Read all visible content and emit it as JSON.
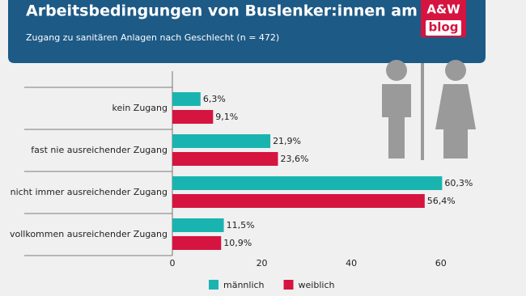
{
  "chart_data": {
    "type": "hbar",
    "title": "Arbeitsbedingungen von Buslenker:innen am Limit",
    "subtitle": "Zugang zu sanitären Anlagen nach Geschlecht (n = 472)",
    "logo_top": "A&W",
    "logo_bottom": "blog",
    "categories": [
      "kein Zugang",
      "fast nie ausreichender Zugang",
      "nicht immer ausreichender Zugang",
      "vollkommen ausreichender Zugang"
    ],
    "series": [
      {
        "name": "männlich",
        "color": "#1ab4b0",
        "values": [
          6.3,
          21.9,
          60.3,
          11.5
        ],
        "value_labels": [
          "6,3%",
          "21,9%",
          "60,3%",
          "11,5%"
        ]
      },
      {
        "name": "weiblich",
        "color": "#d5143f",
        "values": [
          9.1,
          23.6,
          56.4,
          10.9
        ],
        "value_labels": [
          "9,1%",
          "23,6%",
          "56,4%",
          "10,9%"
        ]
      }
    ],
    "xlim": [
      0,
      70
    ],
    "xticks": [
      0,
      20,
      40,
      60
    ],
    "legend": "bottom"
  }
}
